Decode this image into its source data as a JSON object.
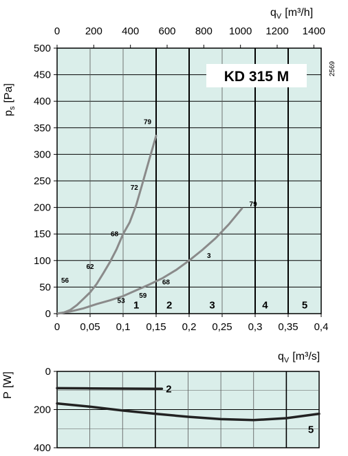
{
  "chart_data": [
    {
      "type": "line",
      "model_label": "KD  315  M",
      "code": "2569",
      "x_bottom": {
        "label_main": "q",
        "label_sub": "V",
        "label_unit": "[m³/s]",
        "ticks": [
          "0",
          "0,05",
          "0,1",
          "0,15",
          "0,2",
          "0,25",
          "0,3",
          "0,35",
          "0,4"
        ],
        "values": [
          0,
          0.05,
          0.1,
          0.15,
          0.2,
          0.25,
          0.3,
          0.35,
          0.4
        ],
        "range": [
          0,
          0.4
        ]
      },
      "x_top": {
        "label_main": "q",
        "label_sub": "V",
        "label_unit": "[m³/h]",
        "ticks": [
          "0",
          "200",
          "400",
          "600",
          "800",
          "1000",
          "1200",
          "1400"
        ],
        "values": [
          0,
          200,
          400,
          600,
          800,
          1000,
          1200,
          1400
        ]
      },
      "y_axis": {
        "label_main": "p",
        "label_sub": "s",
        "label_unit": "[Pa]",
        "ticks": [
          "0",
          "50",
          "100",
          "150",
          "200",
          "250",
          "300",
          "350",
          "400",
          "450",
          "500"
        ],
        "values": [
          0,
          50,
          100,
          150,
          200,
          250,
          300,
          350,
          400,
          450,
          500
        ],
        "range": [
          0,
          500
        ]
      },
      "grid": true,
      "zones": [
        "1",
        "2",
        "3",
        "4",
        "5"
      ],
      "series": [
        {
          "name": "",
          "end_label": "79",
          "x": [
            0,
            0.01,
            0.02,
            0.03,
            0.04,
            0.05,
            0.06,
            0.07,
            0.08,
            0.09,
            0.1,
            0.11,
            0.12,
            0.13,
            0.14,
            0.15
          ],
          "y": [
            0,
            2,
            7,
            16,
            28,
            40,
            56,
            76,
            97,
            121,
            150,
            172,
            205,
            248,
            292,
            335
          ]
        },
        {
          "name": "",
          "end_label": "79",
          "x": [
            0,
            0.02,
            0.04,
            0.06,
            0.08,
            0.1,
            0.12,
            0.14,
            0.16,
            0.18,
            0.2,
            0.22,
            0.24,
            0.26,
            0.28
          ],
          "y": [
            0,
            4,
            10,
            18,
            25,
            33,
            44,
            55,
            67,
            82,
            100,
            120,
            142,
            168,
            198
          ]
        }
      ],
      "annotations": [
        {
          "text": "56",
          "x": 0.012,
          "y": 58
        },
        {
          "text": "62",
          "x": 0.05,
          "y": 84
        },
        {
          "text": "68",
          "x": 0.087,
          "y": 146
        },
        {
          "text": "72",
          "x": 0.117,
          "y": 233
        },
        {
          "text": "79",
          "x": 0.137,
          "y": 357
        },
        {
          "text": "53",
          "x": 0.097,
          "y": 20
        },
        {
          "text": "59",
          "x": 0.13,
          "y": 30
        },
        {
          "text": "68",
          "x": 0.165,
          "y": 55
        },
        {
          "text": "3",
          "x": 0.23,
          "y": 105
        },
        {
          "text": "79",
          "x": 0.297,
          "y": 202
        }
      ]
    },
    {
      "type": "line",
      "y_axis": {
        "label_main": "P",
        "label_unit": "[W]",
        "ticks": [
          "0",
          "200",
          "400"
        ],
        "values": [
          0,
          200,
          400
        ],
        "range": [
          0,
          400
        ],
        "inverted": true
      },
      "x_axis": {
        "label_main": "q",
        "label_sub": "V",
        "label_unit": "[m³/s]",
        "range": [
          0,
          0.4
        ]
      },
      "grid": true,
      "series": [
        {
          "name": "",
          "end_label": "2",
          "x": [
            0,
            0.05,
            0.1,
            0.15,
            0.16
          ],
          "y": [
            88,
            89,
            90,
            91,
            91
          ]
        },
        {
          "name": "",
          "end_label": "5",
          "x": [
            0,
            0.05,
            0.1,
            0.15,
            0.2,
            0.25,
            0.3,
            0.35,
            0.4
          ],
          "y": [
            168,
            185,
            205,
            222,
            238,
            250,
            255,
            245,
            222
          ]
        }
      ]
    }
  ]
}
